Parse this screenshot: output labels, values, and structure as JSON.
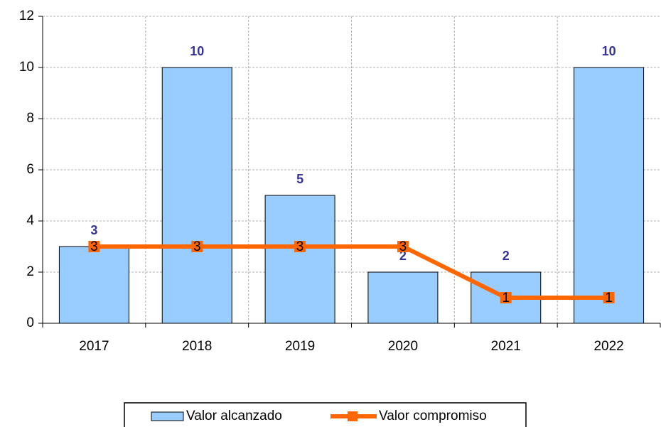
{
  "chart_data": {
    "type": "bar",
    "categories": [
      "2017",
      "2018",
      "2019",
      "2020",
      "2021",
      "2022"
    ],
    "series": [
      {
        "name": "Valor alcanzado",
        "type": "bar",
        "color": "#99ccff",
        "values": [
          3,
          10,
          5,
          2,
          2,
          10
        ]
      },
      {
        "name": "Valor compromiso",
        "type": "line",
        "color": "#ff6600",
        "values": [
          3,
          3,
          3,
          3,
          1,
          1
        ]
      }
    ],
    "ylim": [
      0,
      12
    ],
    "yticks": [
      0,
      2,
      4,
      6,
      8,
      10,
      12
    ],
    "grid": true,
    "legend": "bottom"
  }
}
